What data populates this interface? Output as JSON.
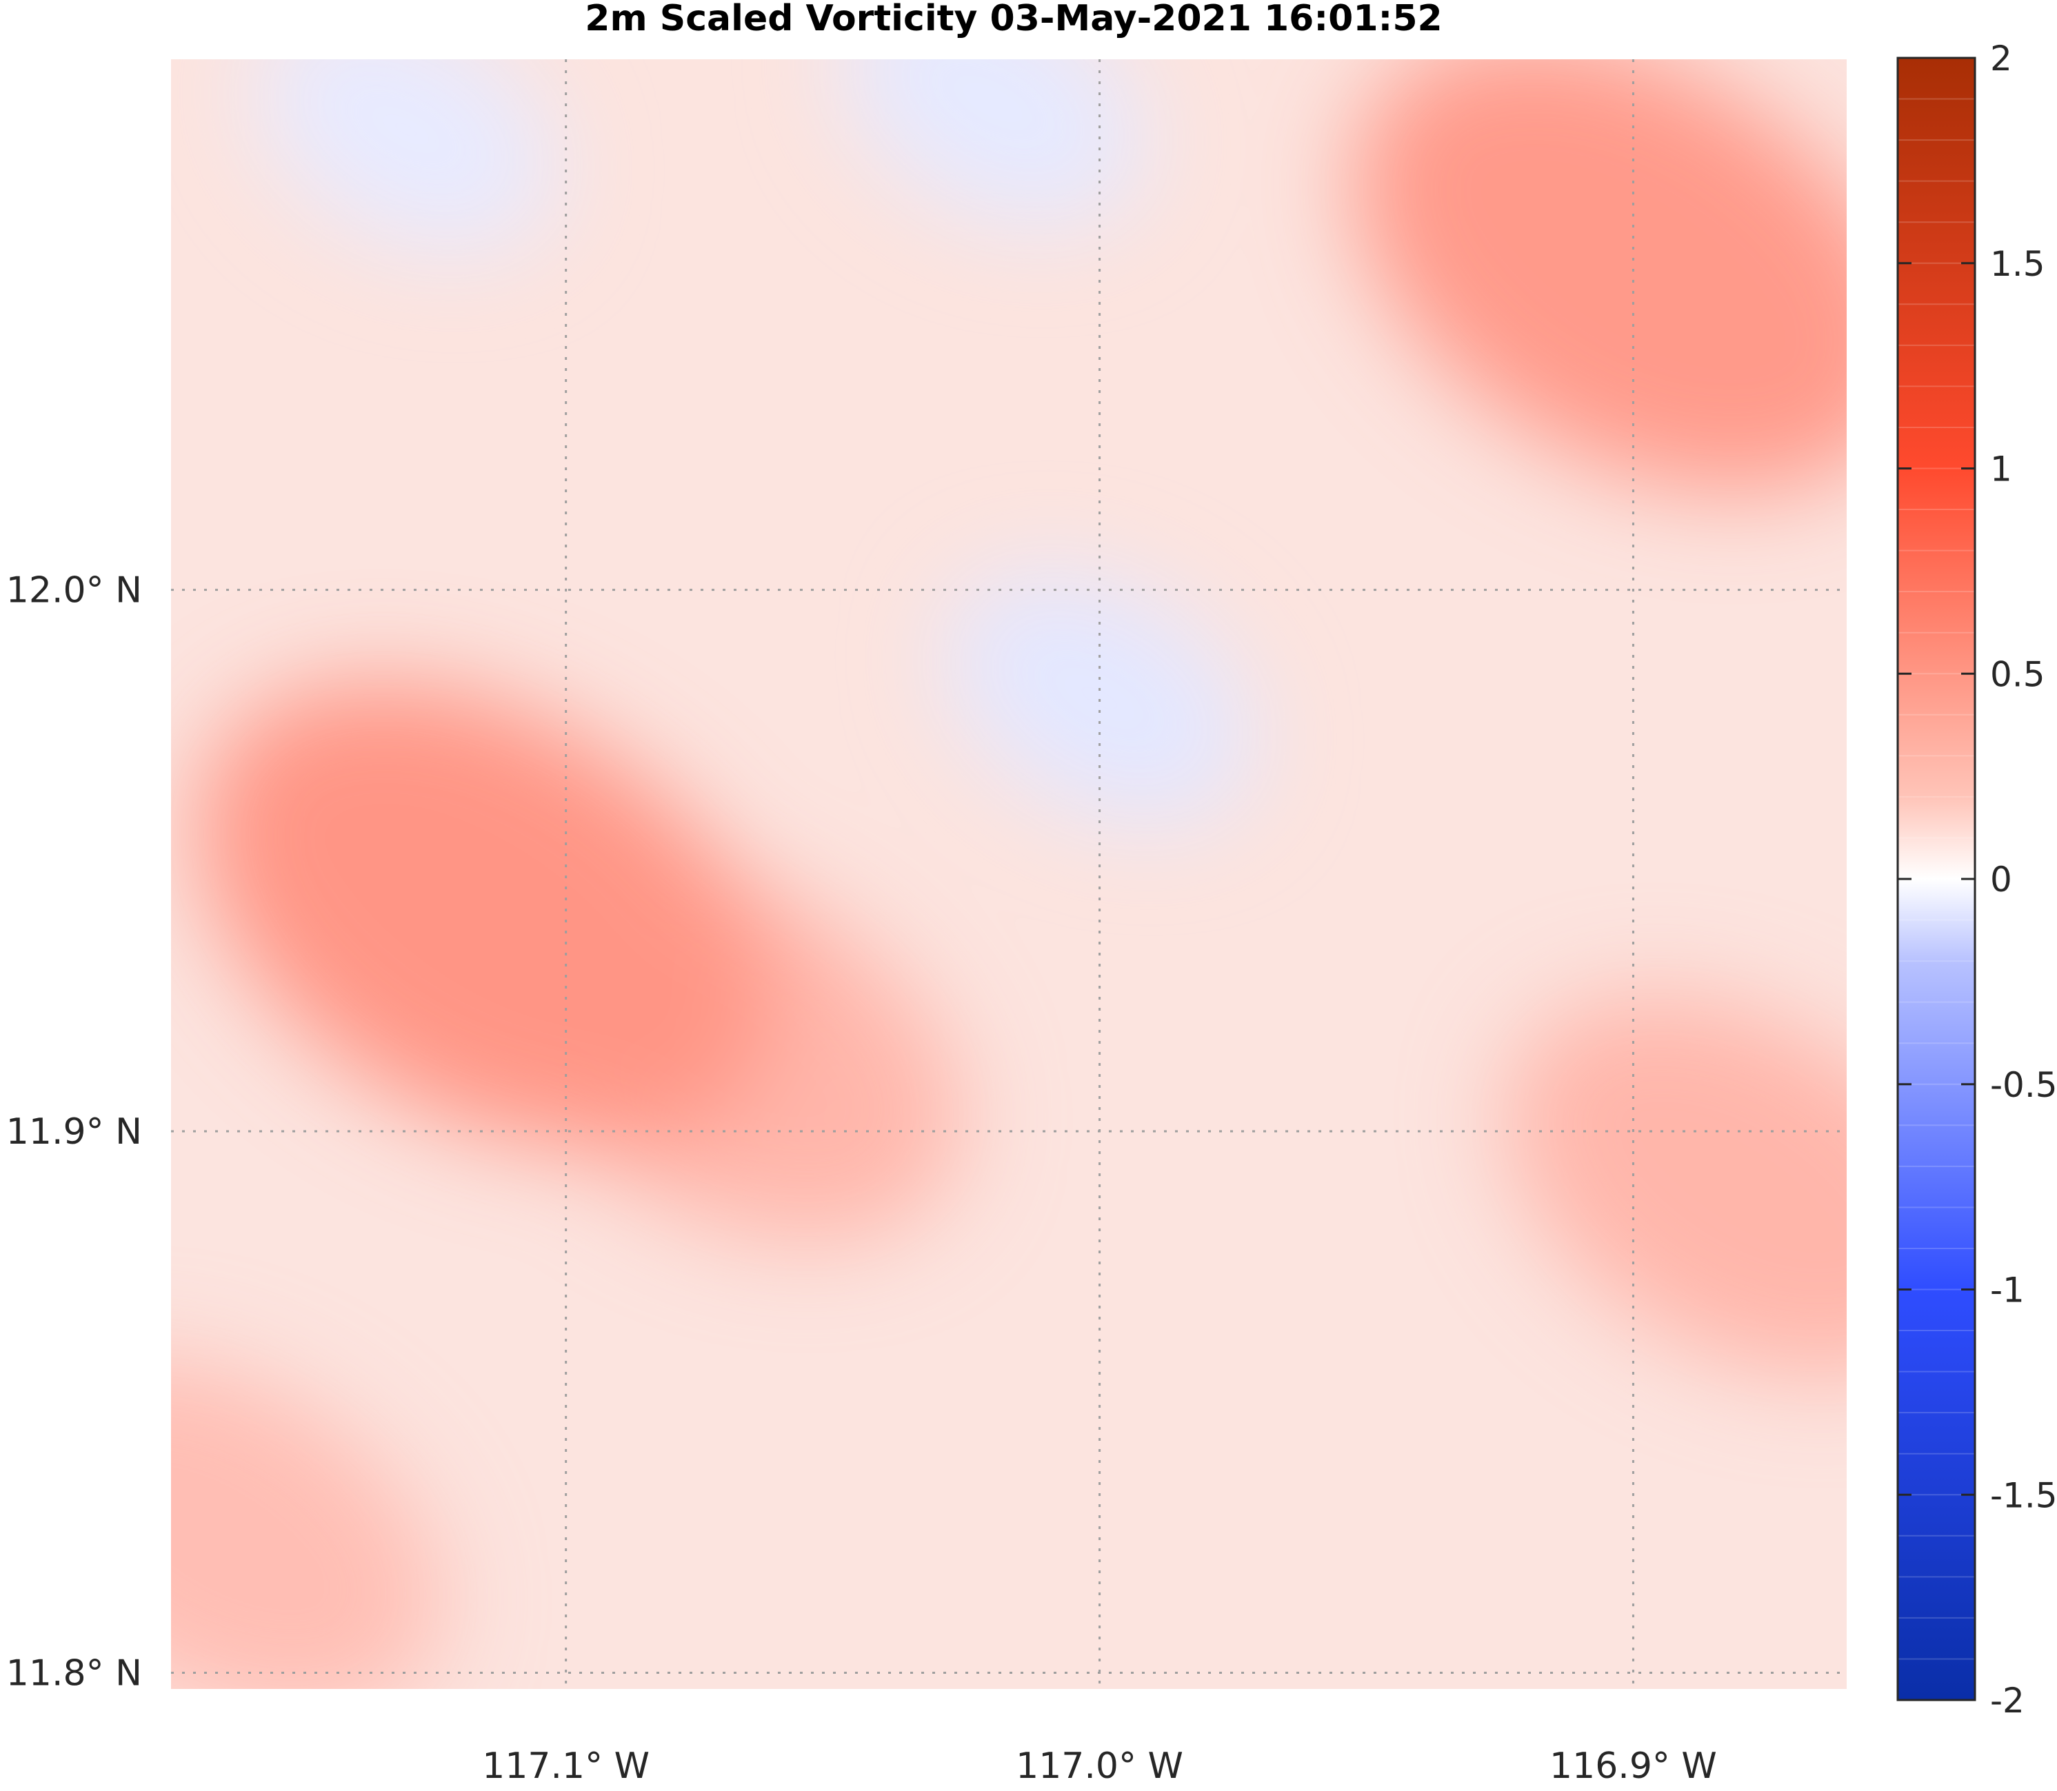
{
  "chart_data": {
    "type": "heatmap",
    "title": "2m Scaled Vorticity  03-May-2021 16:01:52",
    "xlabel": "",
    "ylabel": "",
    "x_ticks": [
      {
        "value": -117.1,
        "label": "117.1° W"
      },
      {
        "value": -117.0,
        "label": "117.0° W"
      },
      {
        "value": -116.9,
        "label": "116.9° W"
      }
    ],
    "y_ticks": [
      {
        "value": 12.0,
        "label": "12.0° N"
      },
      {
        "value": 11.9,
        "label": "11.9° N"
      },
      {
        "value": 11.8,
        "label": "11.8° N"
      }
    ],
    "xlim": [
      -117.174,
      -116.86
    ],
    "ylim": [
      11.797,
      12.098
    ],
    "grid": true,
    "grid_style": "dotted",
    "colorbar": {
      "range": [
        -2,
        2
      ],
      "levels": 40,
      "ticks": [
        {
          "value": 2,
          "label": "2"
        },
        {
          "value": 1.5,
          "label": "1.5"
        },
        {
          "value": 1,
          "label": "1"
        },
        {
          "value": 0.5,
          "label": "0.5"
        },
        {
          "value": 0,
          "label": "0"
        },
        {
          "value": -0.5,
          "label": "-0.5"
        },
        {
          "value": -1,
          "label": "-1"
        },
        {
          "value": -1.5,
          "label": "-1.5"
        },
        {
          "value": -2,
          "label": "-2"
        }
      ],
      "colormap": "diverging blue-white-red",
      "colors": {
        "min": "#0a2ea8",
        "low": "#2f4dff",
        "zero": "#ffffff",
        "high": "#ff4a2e",
        "max": "#a82e05"
      }
    },
    "field_features": [
      {
        "kind": "positive",
        "lon": -117.115,
        "lat": 11.94,
        "value": 0.65
      },
      {
        "kind": "positive",
        "lon": -117.07,
        "lat": 11.915,
        "value": 0.45
      },
      {
        "kind": "positive",
        "lon": -116.9,
        "lat": 12.06,
        "value": 0.62
      },
      {
        "kind": "positive",
        "lon": -116.88,
        "lat": 11.89,
        "value": 0.45
      },
      {
        "kind": "positive",
        "lon": -117.165,
        "lat": 11.825,
        "value": 0.4
      },
      {
        "kind": "negative",
        "lon": -117.0,
        "lat": 11.98,
        "value": -0.15
      },
      {
        "kind": "negative",
        "lon": -117.02,
        "lat": 12.09,
        "value": -0.14
      },
      {
        "kind": "negative",
        "lon": -117.13,
        "lat": 12.085,
        "value": -0.13
      }
    ]
  }
}
